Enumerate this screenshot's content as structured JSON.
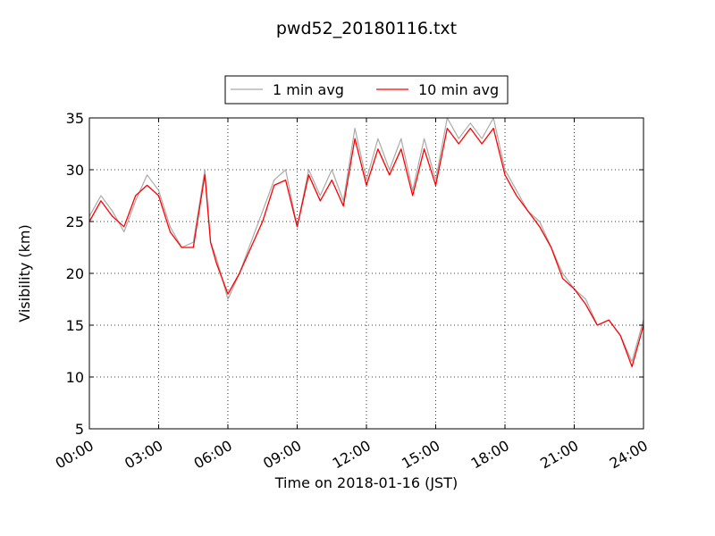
{
  "chart_data": {
    "type": "line",
    "title": "pwd52_20180116.txt",
    "xlabel": "Time on 2018-01-16 (JST)",
    "ylabel": "Visibility (km)",
    "xlim": [
      "00:00",
      "24:00"
    ],
    "ylim": [
      5,
      35
    ],
    "x_ticks": [
      "00:00",
      "03:00",
      "06:00",
      "09:00",
      "12:00",
      "15:00",
      "18:00",
      "21:00",
      "24:00"
    ],
    "y_ticks": [
      5,
      10,
      15,
      20,
      25,
      30,
      35
    ],
    "grid": true,
    "legend_position": "top-center",
    "series": [
      {
        "name": "1 min avg",
        "color": "#aaaaaa",
        "x": [
          "00:00",
          "00:30",
          "01:00",
          "01:30",
          "02:00",
          "02:30",
          "03:00",
          "03:30",
          "04:00",
          "04:30",
          "05:00",
          "05:15",
          "05:30",
          "06:00",
          "06:30",
          "07:00",
          "07:30",
          "08:00",
          "08:30",
          "09:00",
          "09:30",
          "10:00",
          "10:30",
          "11:00",
          "11:30",
          "12:00",
          "12:30",
          "13:00",
          "13:30",
          "14:00",
          "14:30",
          "15:00",
          "15:30",
          "16:00",
          "16:30",
          "17:00",
          "17:30",
          "18:00",
          "18:30",
          "19:00",
          "19:30",
          "20:00",
          "20:30",
          "21:00",
          "21:30",
          "22:00",
          "22:30",
          "23:00",
          "23:30",
          "24:00"
        ],
        "y": [
          25.5,
          27.5,
          26.0,
          24.0,
          27.0,
          29.5,
          28.0,
          24.5,
          22.5,
          23.0,
          30.0,
          23.0,
          21.5,
          17.5,
          20.0,
          23.0,
          26.0,
          29.0,
          30.0,
          24.5,
          30.0,
          27.5,
          30.0,
          27.0,
          34.0,
          29.0,
          33.0,
          30.0,
          33.0,
          28.0,
          33.0,
          29.0,
          35.0,
          33.0,
          34.5,
          33.0,
          35.0,
          30.0,
          28.0,
          26.0,
          25.0,
          22.5,
          20.0,
          18.5,
          17.5,
          15.0,
          15.5,
          14.0,
          11.5,
          15.5
        ]
      },
      {
        "name": "10 min avg",
        "color": "#ff0000",
        "x": [
          "00:00",
          "00:30",
          "01:00",
          "01:30",
          "02:00",
          "02:30",
          "03:00",
          "03:30",
          "04:00",
          "04:30",
          "05:00",
          "05:15",
          "05:30",
          "06:00",
          "06:30",
          "07:00",
          "07:30",
          "08:00",
          "08:30",
          "09:00",
          "09:30",
          "10:00",
          "10:30",
          "11:00",
          "11:30",
          "12:00",
          "12:30",
          "13:00",
          "13:30",
          "14:00",
          "14:30",
          "15:00",
          "15:30",
          "16:00",
          "16:30",
          "17:00",
          "17:30",
          "18:00",
          "18:30",
          "19:00",
          "19:30",
          "20:00",
          "20:30",
          "21:00",
          "21:30",
          "22:00",
          "22:30",
          "23:00",
          "23:30",
          "24:00"
        ],
        "y": [
          25.0,
          27.0,
          25.5,
          24.5,
          27.5,
          28.5,
          27.5,
          24.0,
          22.5,
          22.5,
          29.5,
          23.0,
          21.0,
          18.0,
          20.0,
          22.5,
          25.0,
          28.5,
          29.0,
          24.5,
          29.5,
          27.0,
          29.0,
          26.5,
          33.0,
          28.5,
          32.0,
          29.5,
          32.0,
          27.5,
          32.0,
          28.5,
          34.0,
          32.5,
          34.0,
          32.5,
          34.0,
          29.5,
          27.5,
          26.0,
          24.5,
          22.5,
          19.5,
          18.5,
          17.0,
          15.0,
          15.5,
          14.0,
          11.0,
          15.0
        ]
      }
    ]
  }
}
